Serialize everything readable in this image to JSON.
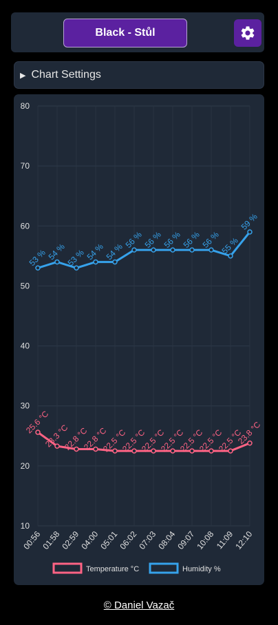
{
  "header": {
    "device_label": "Black - Stůl",
    "settings_icon": "gear-icon"
  },
  "chart_settings": {
    "label": "Chart Settings",
    "arrow_icon": "triangle-right-icon"
  },
  "chart_data": {
    "type": "line",
    "x": [
      "00:56",
      "01:58",
      "02:59",
      "04:00",
      "05:01",
      "06:02",
      "07:03",
      "08:04",
      "09:07",
      "10:08",
      "11:09",
      "12:10"
    ],
    "ylim": [
      10,
      80
    ],
    "yticks": [
      10,
      20,
      30,
      40,
      50,
      60,
      70,
      80
    ],
    "grid": true,
    "legend_position": "bottom",
    "series": [
      {
        "name": "Temperature °C",
        "color": "#ff6384",
        "values": [
          25.6,
          23.3,
          22.8,
          22.8,
          22.5,
          22.5,
          22.5,
          22.5,
          22.5,
          22.5,
          22.5,
          23.8
        ],
        "labels": [
          "25.6 °C",
          "23.3 °C",
          "22.8 °C",
          "22.8 °C",
          "22.5 °C",
          "22.5 °C",
          "22.5 °C",
          "22.5 °C",
          "22.5 °C",
          "22.5 °C",
          "22.5 °C",
          "23.8 °C"
        ]
      },
      {
        "name": "Humidity %",
        "color": "#36a2eb",
        "values": [
          53,
          54,
          53,
          54,
          54,
          56,
          56,
          56,
          56,
          56,
          55,
          59
        ],
        "labels": [
          "53 %",
          "54 %",
          "53 %",
          "54 %",
          "54 %",
          "56 %",
          "56 %",
          "56 %",
          "56 %",
          "56 %",
          "55 %",
          "59 %"
        ]
      }
    ]
  },
  "footer": {
    "credit": "© Daniel Vazač"
  }
}
